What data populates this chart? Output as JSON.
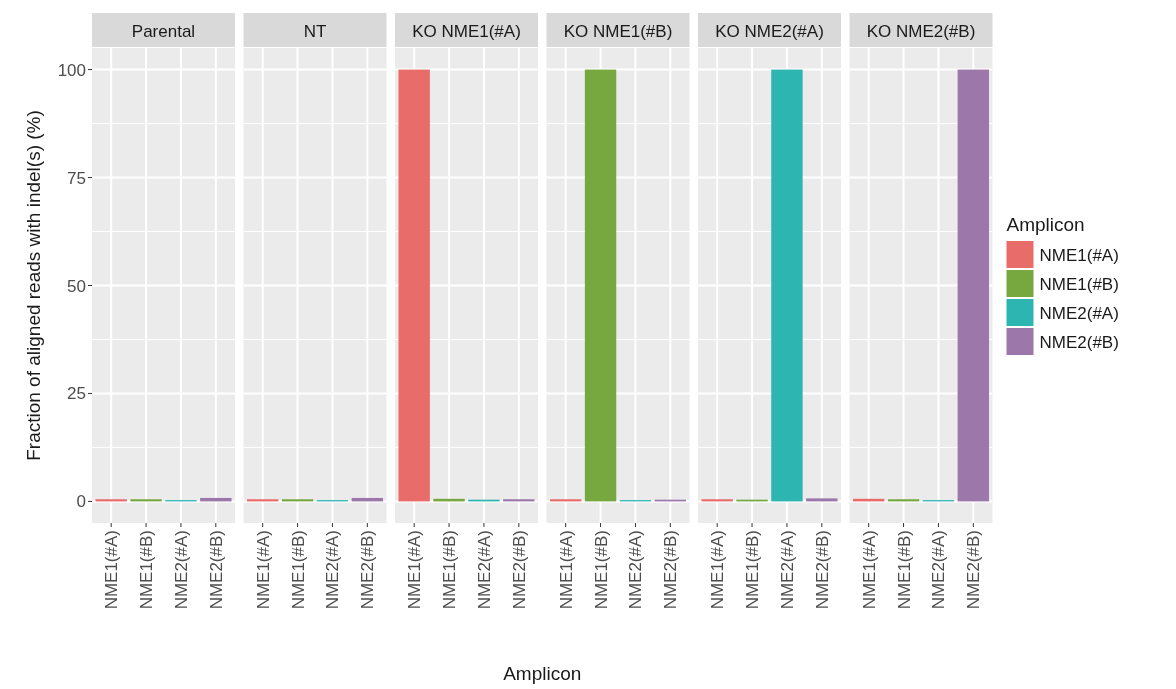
{
  "chart_data": [
    {
      "type": "bar",
      "title": "Parental",
      "ylabel": "Fraction of aligned reads with indel(s) (%)",
      "categories": [
        "NME1(#A)",
        "NME1(#B)",
        "NME2(#A)",
        "NME2(#B)"
      ],
      "series": [
        {
          "color": "#e76c6a",
          "values": [
            0.5,
            null,
            null,
            null
          ]
        },
        {
          "color": "#76a83f",
          "values": [
            null,
            0.5,
            null,
            null
          ]
        },
        {
          "color": "#2db5b1",
          "values": [
            null,
            null,
            0.3,
            null
          ]
        },
        {
          "color": "#9b77aa",
          "values": [
            null,
            null,
            null,
            0.8
          ]
        }
      ],
      "ylim": [
        -5,
        105
      ],
      "yticks": [
        0,
        25,
        50,
        75,
        100
      ],
      "grid": true
    },
    {
      "type": "bar",
      "title": "NT",
      "categories": [
        "NME1(#A)",
        "NME1(#B)",
        "NME2(#A)",
        "NME2(#B)"
      ],
      "series": [
        {
          "color": "#e76c6a",
          "values": [
            0.5,
            null,
            null,
            null
          ]
        },
        {
          "color": "#76a83f",
          "values": [
            null,
            0.5,
            null,
            null
          ]
        },
        {
          "color": "#2db5b1",
          "values": [
            null,
            null,
            0.3,
            null
          ]
        },
        {
          "color": "#9b77aa",
          "values": [
            null,
            null,
            null,
            0.8
          ]
        }
      ],
      "ylim": [
        -5,
        105
      ],
      "yticks": [
        0,
        25,
        50,
        75,
        100
      ],
      "grid": true,
      "tick_labels": "x"
    },
    {
      "type": "bar",
      "title": "KO NME1(#A)",
      "xlabel": "Amplicon",
      "categories": [
        "NME1(#A)",
        "NME1(#B)",
        "NME2(#A)",
        "NME2(#B)"
      ],
      "series": [
        {
          "color": "#e76c6a",
          "values": [
            100,
            null,
            null,
            null
          ]
        },
        {
          "color": "#76a83f",
          "values": [
            null,
            0.6,
            null,
            null
          ]
        },
        {
          "color": "#2db5b1",
          "values": [
            null,
            null,
            0.4,
            null
          ]
        },
        {
          "color": "#9b77aa",
          "values": [
            null,
            null,
            null,
            0.5
          ]
        }
      ],
      "ylim": [
        -5,
        105
      ],
      "yticks": [
        0,
        25,
        50,
        75,
        100
      ],
      "grid": true,
      "tick_labels": "x"
    },
    {
      "type": "bar",
      "title": "KO NME1(#B)",
      "categories": [
        "NME1(#A)",
        "NME1(#B)",
        "NME2(#A)",
        "NME2(#B)"
      ],
      "series": [
        {
          "color": "#e76c6a",
          "values": [
            0.5,
            null,
            null,
            null
          ]
        },
        {
          "color": "#76a83f",
          "values": [
            null,
            100,
            null,
            null
          ]
        },
        {
          "color": "#2db5b1",
          "values": [
            null,
            null,
            0.3,
            null
          ]
        },
        {
          "color": "#9b77aa",
          "values": [
            null,
            null,
            null,
            0.4
          ]
        }
      ],
      "ylim": [
        -5,
        105
      ],
      "yticks": [
        0,
        25,
        50,
        75,
        100
      ],
      "grid": true,
      "tick_labels": "x"
    },
    {
      "type": "bar",
      "title": "KO NME2(#A)",
      "categories": [
        "NME1(#A)",
        "NME1(#B)",
        "NME2(#A)",
        "NME2(#B)"
      ],
      "series": [
        {
          "color": "#e76c6a",
          "values": [
            0.5,
            null,
            null,
            null
          ]
        },
        {
          "color": "#76a83f",
          "values": [
            null,
            0.4,
            null,
            null
          ]
        },
        {
          "color": "#2db5b1",
          "values": [
            null,
            null,
            100,
            null
          ]
        },
        {
          "color": "#9b77aa",
          "values": [
            null,
            null,
            null,
            0.7
          ]
        }
      ],
      "ylim": [
        -5,
        105
      ],
      "yticks": [
        0,
        25,
        50,
        75,
        100
      ],
      "grid": true,
      "tick_labels": "x"
    },
    {
      "type": "bar",
      "title": "KO NME2(#B)",
      "legend_title": "Amplicon",
      "legend": "right",
      "categories": [
        "NME1(#A)",
        "NME1(#B)",
        "NME2(#A)",
        "NME2(#B)"
      ],
      "series": [
        {
          "name": "NME1(#A)",
          "color": "#e76c6a",
          "values": [
            0.6,
            null,
            null,
            null
          ]
        },
        {
          "name": "NME1(#B)",
          "color": "#76a83f",
          "values": [
            null,
            0.5,
            null,
            null
          ]
        },
        {
          "name": "NME2(#A)",
          "color": "#2db5b1",
          "values": [
            null,
            null,
            0.3,
            null
          ]
        },
        {
          "name": "NME2(#B)",
          "color": "#9b77aa",
          "values": [
            null,
            null,
            null,
            100
          ]
        }
      ],
      "ylim": [
        -5,
        105
      ],
      "yticks": [
        0,
        25,
        50,
        75,
        100
      ],
      "grid": true,
      "tick_labels": "x"
    }
  ]
}
